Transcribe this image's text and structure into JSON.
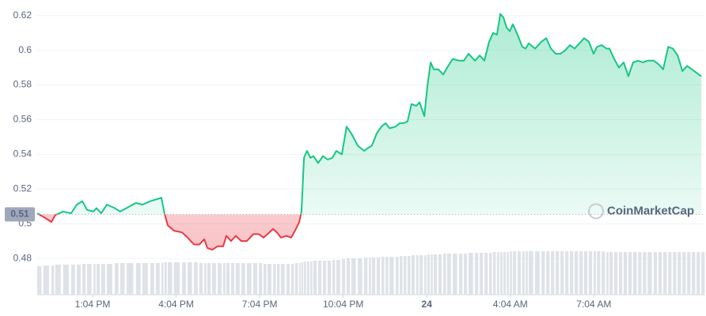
{
  "chart_data": {
    "type": "line",
    "x": [
      11.08,
      11.3,
      11.59,
      11.73,
      12.01,
      12.3,
      12.5,
      12.7,
      12.87,
      13.1,
      13.21,
      13.38,
      13.58,
      13.86,
      14.06,
      14.29,
      14.63,
      14.86,
      15.14,
      15.34,
      15.54,
      15.65,
      15.77,
      15.99,
      16.28,
      16.48,
      16.71,
      16.9,
      17.08,
      17.19,
      17.36,
      17.56,
      17.76,
      17.87,
      18.04,
      18.21,
      18.41,
      18.61,
      18.84,
      19.04,
      19.21,
      19.35,
      19.55,
      19.69,
      19.83,
      20.03,
      20.2,
      20.34,
      20.49,
      20.57,
      20.66,
      20.77,
      20.89,
      21.0,
      21.17,
      21.34,
      21.51,
      21.68,
      21.82,
      22.02,
      22.19,
      22.36,
      22.59,
      22.82,
      22.99,
      23.1,
      23.27,
      23.44,
      23.59,
      23.73,
      23.95,
      24.1,
      24.24,
      24.38,
      24.52,
      24.69,
      24.81,
      24.98,
      25.09,
      25.21,
      25.32,
      25.49,
      25.66,
      25.8,
      26.0,
      26.23,
      26.4,
      26.57,
      26.8,
      26.97,
      27.14,
      27.31,
      27.45,
      27.59,
      27.71,
      27.82,
      27.94,
      28.05,
      28.16,
      28.33,
      28.5,
      28.62,
      28.73,
      28.96,
      29.19,
      29.36,
      29.53,
      29.7,
      29.87,
      30.04,
      30.21,
      30.38,
      30.55,
      30.72,
      30.89,
      31.06,
      31.18,
      31.35,
      31.52,
      31.63,
      31.8,
      31.97,
      32.14,
      32.31,
      32.48,
      32.66,
      32.83,
      33.0,
      33.22,
      33.39,
      33.56,
      33.74,
      33.91,
      34.08,
      34.25,
      34.42,
      34.59,
      34.76,
      34.93
    ],
    "values": [
      0.506,
      0.504,
      0.501,
      0.505,
      0.507,
      0.506,
      0.511,
      0.513,
      0.508,
      0.507,
      0.509,
      0.506,
      0.511,
      0.509,
      0.507,
      0.509,
      0.512,
      0.511,
      0.513,
      0.514,
      0.515,
      0.506,
      0.499,
      0.496,
      0.495,
      0.492,
      0.488,
      0.488,
      0.491,
      0.486,
      0.485,
      0.487,
      0.487,
      0.493,
      0.49,
      0.493,
      0.49,
      0.49,
      0.494,
      0.494,
      0.492,
      0.494,
      0.497,
      0.495,
      0.492,
      0.493,
      0.492,
      0.496,
      0.501,
      0.507,
      0.538,
      0.542,
      0.538,
      0.539,
      0.535,
      0.539,
      0.537,
      0.538,
      0.542,
      0.54,
      0.556,
      0.552,
      0.545,
      0.542,
      0.544,
      0.545,
      0.552,
      0.556,
      0.558,
      0.555,
      0.556,
      0.558,
      0.558,
      0.559,
      0.569,
      0.568,
      0.57,
      0.562,
      0.579,
      0.593,
      0.589,
      0.589,
      0.586,
      0.59,
      0.595,
      0.594,
      0.594,
      0.598,
      0.594,
      0.597,
      0.594,
      0.605,
      0.61,
      0.609,
      0.621,
      0.619,
      0.613,
      0.611,
      0.615,
      0.609,
      0.602,
      0.601,
      0.604,
      0.601,
      0.605,
      0.607,
      0.601,
      0.598,
      0.598,
      0.6,
      0.603,
      0.601,
      0.604,
      0.607,
      0.605,
      0.598,
      0.602,
      0.603,
      0.601,
      0.601,
      0.595,
      0.59,
      0.593,
      0.585,
      0.593,
      0.594,
      0.593,
      0.594,
      0.594,
      0.592,
      0.589,
      0.602,
      0.601,
      0.597,
      0.588,
      0.591,
      0.589,
      0.587,
      0.585
    ],
    "volume": [
      36,
      37,
      37,
      38,
      38,
      38,
      38,
      39,
      39,
      39,
      39,
      39,
      39,
      40,
      40,
      40,
      40,
      40,
      40,
      40,
      40,
      41,
      41,
      41,
      41,
      41,
      41,
      40,
      40,
      40,
      40,
      40,
      40,
      40,
      40,
      40,
      40,
      40,
      40,
      40,
      39,
      39,
      39,
      39,
      39,
      39,
      39,
      40,
      40,
      41,
      42,
      42,
      42,
      43,
      43,
      43,
      43,
      44,
      44,
      45,
      46,
      46,
      46,
      47,
      47,
      47,
      47,
      48,
      48,
      48,
      48,
      49,
      49,
      49,
      50,
      50,
      50,
      50,
      51,
      51,
      51,
      51,
      52,
      52,
      52,
      52,
      52,
      53,
      53,
      53,
      53,
      53,
      54,
      54,
      54,
      54,
      54,
      55,
      55,
      55,
      55,
      55,
      55,
      55,
      55,
      55,
      55,
      55,
      55,
      55,
      55,
      55,
      55,
      55,
      55,
      55,
      55,
      55,
      54,
      54,
      54,
      54,
      54,
      54,
      54,
      54,
      54,
      54,
      54,
      54,
      54,
      54,
      54,
      54,
      54,
      54,
      54,
      54,
      54
    ],
    "colors": {
      "up": "#16c784",
      "down": "#ea3943",
      "volume": "#dfe2e7",
      "baseline": "#a1a7bb"
    },
    "baseline": {
      "value": 0.5054,
      "label": "0.51"
    },
    "watermark": "CoinMarketCap",
    "xlim": [
      11.08,
      35.04
    ],
    "xticks": [
      {
        "value": 13.07,
        "label": "1:04 PM"
      },
      {
        "value": 16.07,
        "label": "4:04 PM"
      },
      {
        "value": 19.07,
        "label": "7:04 PM"
      },
      {
        "value": 22.07,
        "label": "10:04 PM"
      },
      {
        "value": 25.07,
        "label": "24"
      },
      {
        "value": 28.07,
        "label": "4:04 AM"
      },
      {
        "value": 31.07,
        "label": "7:04 AM"
      }
    ],
    "ylim": [
      0.46,
      0.629
    ],
    "yticks": [
      0.48,
      0.5,
      0.52,
      0.54,
      0.56,
      0.58,
      0.6,
      0.62
    ],
    "grid": true
  }
}
